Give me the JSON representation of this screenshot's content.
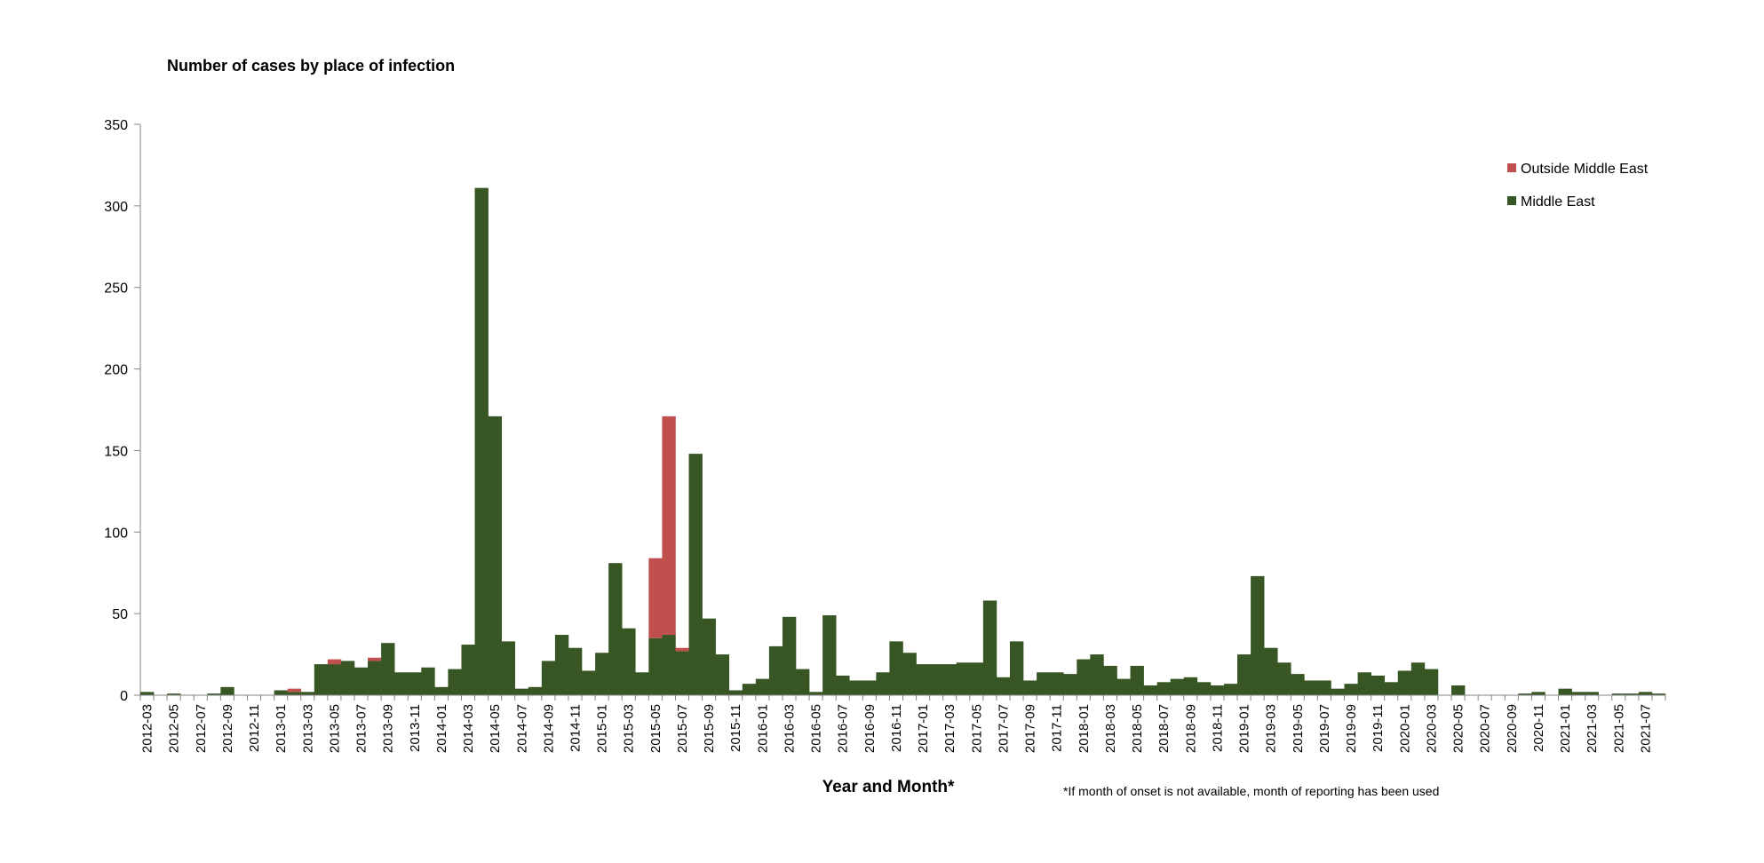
{
  "chart_data": {
    "type": "bar",
    "stacked": true,
    "title": "Number of cases by place of infection",
    "xlabel": "Year and Month*",
    "ylabel": "",
    "note": "*If month of onset is not available, month of reporting has been used",
    "ylim": [
      0,
      350
    ],
    "yticks": [
      0,
      50,
      100,
      150,
      200,
      250,
      300,
      350
    ],
    "grid": false,
    "legend_position": "top-right",
    "colors": {
      "middle_east": "#375623",
      "outside_middle_east": "#C0504D"
    },
    "x_tick_labels": [
      "2012-03",
      "2012-05",
      "2012-07",
      "2012-09",
      "2012-11",
      "2013-01",
      "2013-03",
      "2013-05",
      "2013-07",
      "2013-09",
      "2013-11",
      "2014-01",
      "2014-03",
      "2014-05",
      "2014-07",
      "2014-09",
      "2014-11",
      "2015-01",
      "2015-03",
      "2015-05",
      "2015-07",
      "2015-09",
      "2015-11",
      "2016-01",
      "2016-03",
      "2016-05",
      "2016-07",
      "2016-09",
      "2016-11",
      "2017-01",
      "2017-03",
      "2017-05",
      "2017-07",
      "2017-09",
      "2017-11",
      "2018-01",
      "2018-03",
      "2018-05",
      "2018-07",
      "2018-09",
      "2018-11",
      "2019-01",
      "2019-03",
      "2019-05",
      "2019-07",
      "2019-09",
      "2019-11",
      "2020-01",
      "2020-03",
      "2020-05",
      "2020-07",
      "2020-09",
      "2020-11",
      "2021-01",
      "2021-03",
      "2021-05",
      "2021-07"
    ],
    "categories": [
      "2012-03",
      "2012-04",
      "2012-05",
      "2012-06",
      "2012-07",
      "2012-08",
      "2012-09",
      "2012-10",
      "2012-11",
      "2012-12",
      "2013-01",
      "2013-02",
      "2013-03",
      "2013-04",
      "2013-05",
      "2013-06",
      "2013-07",
      "2013-08",
      "2013-09",
      "2013-10",
      "2013-11",
      "2013-12",
      "2014-01",
      "2014-02",
      "2014-03",
      "2014-04",
      "2014-05",
      "2014-06",
      "2014-07",
      "2014-08",
      "2014-09",
      "2014-10",
      "2014-11",
      "2014-12",
      "2015-01",
      "2015-02",
      "2015-03",
      "2015-04",
      "2015-05",
      "2015-06",
      "2015-07",
      "2015-08",
      "2015-09",
      "2015-10",
      "2015-11",
      "2015-12",
      "2016-01",
      "2016-02",
      "2016-03",
      "2016-04",
      "2016-05",
      "2016-06",
      "2016-07",
      "2016-08",
      "2016-09",
      "2016-10",
      "2016-11",
      "2016-12",
      "2017-01",
      "2017-02",
      "2017-03",
      "2017-04",
      "2017-05",
      "2017-06",
      "2017-07",
      "2017-08",
      "2017-09",
      "2017-10",
      "2017-11",
      "2017-12",
      "2018-01",
      "2018-02",
      "2018-03",
      "2018-04",
      "2018-05",
      "2018-06",
      "2018-07",
      "2018-08",
      "2018-09",
      "2018-10",
      "2018-11",
      "2018-12",
      "2019-01",
      "2019-02",
      "2019-03",
      "2019-04",
      "2019-05",
      "2019-06",
      "2019-07",
      "2019-08",
      "2019-09",
      "2019-10",
      "2019-11",
      "2019-12",
      "2020-01",
      "2020-02",
      "2020-03",
      "2020-04",
      "2020-05",
      "2020-06",
      "2020-07",
      "2020-08",
      "2020-09",
      "2020-10",
      "2020-11",
      "2020-12",
      "2021-01",
      "2021-02",
      "2021-03",
      "2021-04",
      "2021-05",
      "2021-06",
      "2021-07",
      "2021-08"
    ],
    "series": [
      {
        "name": "Middle East",
        "values": [
          2,
          0,
          1,
          0,
          0,
          1,
          5,
          0,
          0,
          0,
          3,
          2,
          2,
          19,
          19,
          21,
          17,
          21,
          32,
          14,
          14,
          17,
          5,
          16,
          31,
          311,
          171,
          33,
          4,
          5,
          21,
          37,
          29,
          15,
          26,
          81,
          41,
          14,
          35,
          37,
          27,
          148,
          47,
          25,
          3,
          7,
          10,
          30,
          48,
          16,
          2,
          49,
          12,
          9,
          9,
          14,
          33,
          26,
          19,
          19,
          19,
          20,
          20,
          58,
          11,
          33,
          9,
          14,
          14,
          13,
          22,
          25,
          18,
          10,
          18,
          6,
          8,
          10,
          11,
          8,
          6,
          7,
          25,
          73,
          29,
          20,
          13,
          9,
          9,
          4,
          7,
          14,
          12,
          8,
          15,
          20,
          16,
          0,
          6,
          0,
          0,
          0,
          0,
          1,
          2,
          0,
          4,
          2,
          2,
          0,
          1,
          1,
          2,
          1
        ]
      },
      {
        "name": "Outside Middle East",
        "values": [
          0,
          0,
          0,
          0,
          0,
          0,
          0,
          0,
          0,
          0,
          0,
          2,
          0,
          0,
          3,
          0,
          0,
          2,
          0,
          0,
          0,
          0,
          0,
          0,
          0,
          0,
          0,
          0,
          0,
          0,
          0,
          0,
          0,
          0,
          0,
          0,
          0,
          0,
          49,
          134,
          2,
          0,
          0,
          0,
          0,
          0,
          0,
          0,
          0,
          0,
          0,
          0,
          0,
          0,
          0,
          0,
          0,
          0,
          0,
          0,
          0,
          0,
          0,
          0,
          0,
          0,
          0,
          0,
          0,
          0,
          0,
          0,
          0,
          0,
          0,
          0,
          0,
          0,
          0,
          0,
          0,
          0,
          0,
          0,
          0,
          0,
          0,
          0,
          0,
          0,
          0,
          0,
          0,
          0,
          0,
          0,
          0,
          0,
          0,
          0,
          0,
          0,
          0,
          0,
          0,
          0,
          0,
          0,
          0,
          0,
          0,
          0,
          0,
          0
        ]
      }
    ]
  }
}
